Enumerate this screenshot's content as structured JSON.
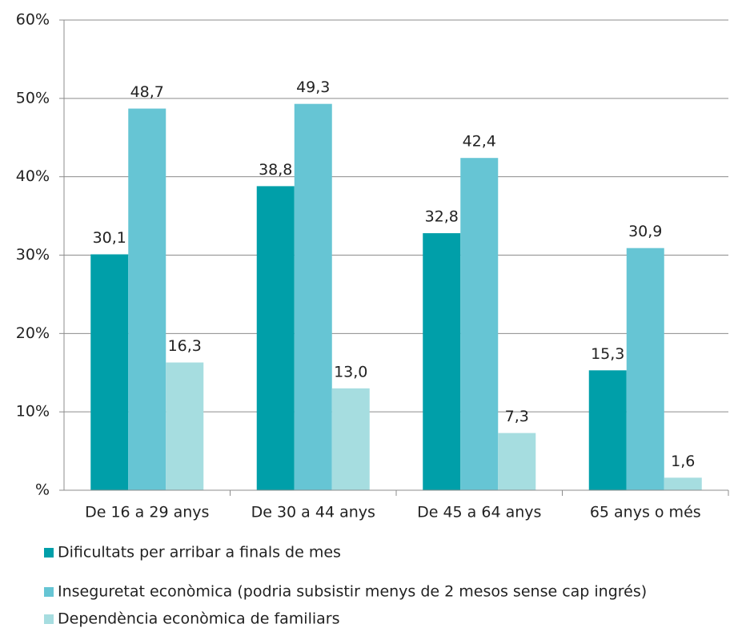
{
  "chart_data": {
    "type": "bar",
    "categories": [
      "De 16 a 29 anys",
      "De 30 a 44 anys",
      "De 45 a 64 anys",
      "65 anys o més"
    ],
    "series": [
      {
        "name": "Dificultats per arribar a finals de mes",
        "color": "#009fa9",
        "values": [
          30.1,
          38.8,
          32.8,
          15.3
        ],
        "value_labels": [
          "30,1",
          "38,8",
          "32,8",
          "15,3"
        ]
      },
      {
        "name": "Inseguretat econòmica (podria subsistir menys de 2 mesos sense cap ingrés)",
        "color": "#66c5d4",
        "values": [
          48.7,
          49.3,
          42.4,
          30.9
        ],
        "value_labels": [
          "48,7",
          "49,3",
          "42,4",
          "30,9"
        ]
      },
      {
        "name": "Dependència econòmica de familiars",
        "color": "#a6dde0",
        "values": [
          16.3,
          13.0,
          7.3,
          1.6
        ],
        "value_labels": [
          "16,3",
          "13,0",
          "7,3",
          "1,6"
        ]
      }
    ],
    "ylim": [
      0,
      60
    ],
    "yticks": [
      {
        "value": 0,
        "label": "%"
      },
      {
        "value": 10,
        "label": "10%"
      },
      {
        "value": 20,
        "label": "20%"
      },
      {
        "value": 30,
        "label": "30%"
      },
      {
        "value": 40,
        "label": "40%"
      },
      {
        "value": 50,
        "label": "50%"
      },
      {
        "value": 60,
        "label": "60%"
      }
    ],
    "grid": true,
    "legend": "bottom"
  }
}
